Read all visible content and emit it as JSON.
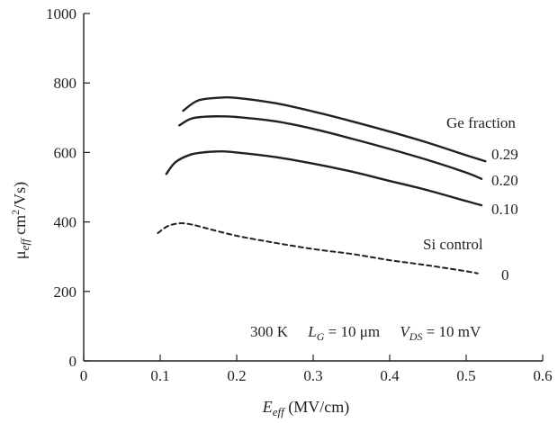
{
  "chart_data": {
    "type": "line",
    "xlim": [
      0,
      0.6
    ],
    "ylim": [
      0,
      1000
    ],
    "x_ticks": [
      0,
      0.1,
      0.2,
      0.3,
      0.4,
      0.5,
      0.6
    ],
    "x_tick_labels": [
      "0",
      "0.1",
      "0.2",
      "0.3",
      "0.4",
      "0.5",
      "0.6"
    ],
    "y_ticks": [
      0,
      200,
      400,
      600,
      800,
      1000
    ],
    "y_tick_labels": [
      "0",
      "200",
      "400",
      "600",
      "800",
      "1000"
    ],
    "xlabel": {
      "main": "E",
      "sub": "eff",
      "rest": " (MV/cm)"
    },
    "ylabel": {
      "main": "μ",
      "sub": "eff",
      "rest": " cm",
      "sup": "2",
      "tail": "/Vs)"
    },
    "grid": false,
    "series": [
      {
        "name": "0.29",
        "style": "solid",
        "x": [
          0.13,
          0.15,
          0.18,
          0.2,
          0.25,
          0.3,
          0.35,
          0.4,
          0.45,
          0.5,
          0.525
        ],
        "y": [
          720,
          750,
          758,
          757,
          742,
          718,
          690,
          660,
          628,
          592,
          575
        ]
      },
      {
        "name": "0.20",
        "style": "solid",
        "x": [
          0.125,
          0.14,
          0.16,
          0.18,
          0.2,
          0.25,
          0.3,
          0.35,
          0.4,
          0.45,
          0.5,
          0.52
        ],
        "y": [
          678,
          697,
          703,
          704,
          702,
          690,
          668,
          640,
          610,
          578,
          542,
          524
        ]
      },
      {
        "name": "0.10",
        "style": "solid",
        "x": [
          0.108,
          0.12,
          0.14,
          0.16,
          0.18,
          0.2,
          0.25,
          0.3,
          0.35,
          0.4,
          0.45,
          0.5,
          0.52
        ],
        "y": [
          538,
          572,
          594,
          601,
          603,
          600,
          587,
          568,
          545,
          518,
          491,
          460,
          448
        ]
      },
      {
        "name": "0",
        "style": "dashed",
        "x": [
          0.097,
          0.11,
          0.125,
          0.14,
          0.16,
          0.2,
          0.25,
          0.3,
          0.35,
          0.4,
          0.45,
          0.5,
          0.515
        ],
        "y": [
          368,
          388,
          396,
          393,
          382,
          360,
          340,
          322,
          308,
          290,
          275,
          258,
          252
        ]
      }
    ],
    "annotations": {
      "ge_fraction": "Ge fraction",
      "si_control": "Si control",
      "conditions": {
        "temp": "300 K",
        "lg_main": "L",
        "lg_sub": "G",
        "lg_rest": " = 10 μm",
        "vds_main": "V",
        "vds_sub": "DS",
        "vds_rest": " = 10 mV"
      }
    }
  }
}
